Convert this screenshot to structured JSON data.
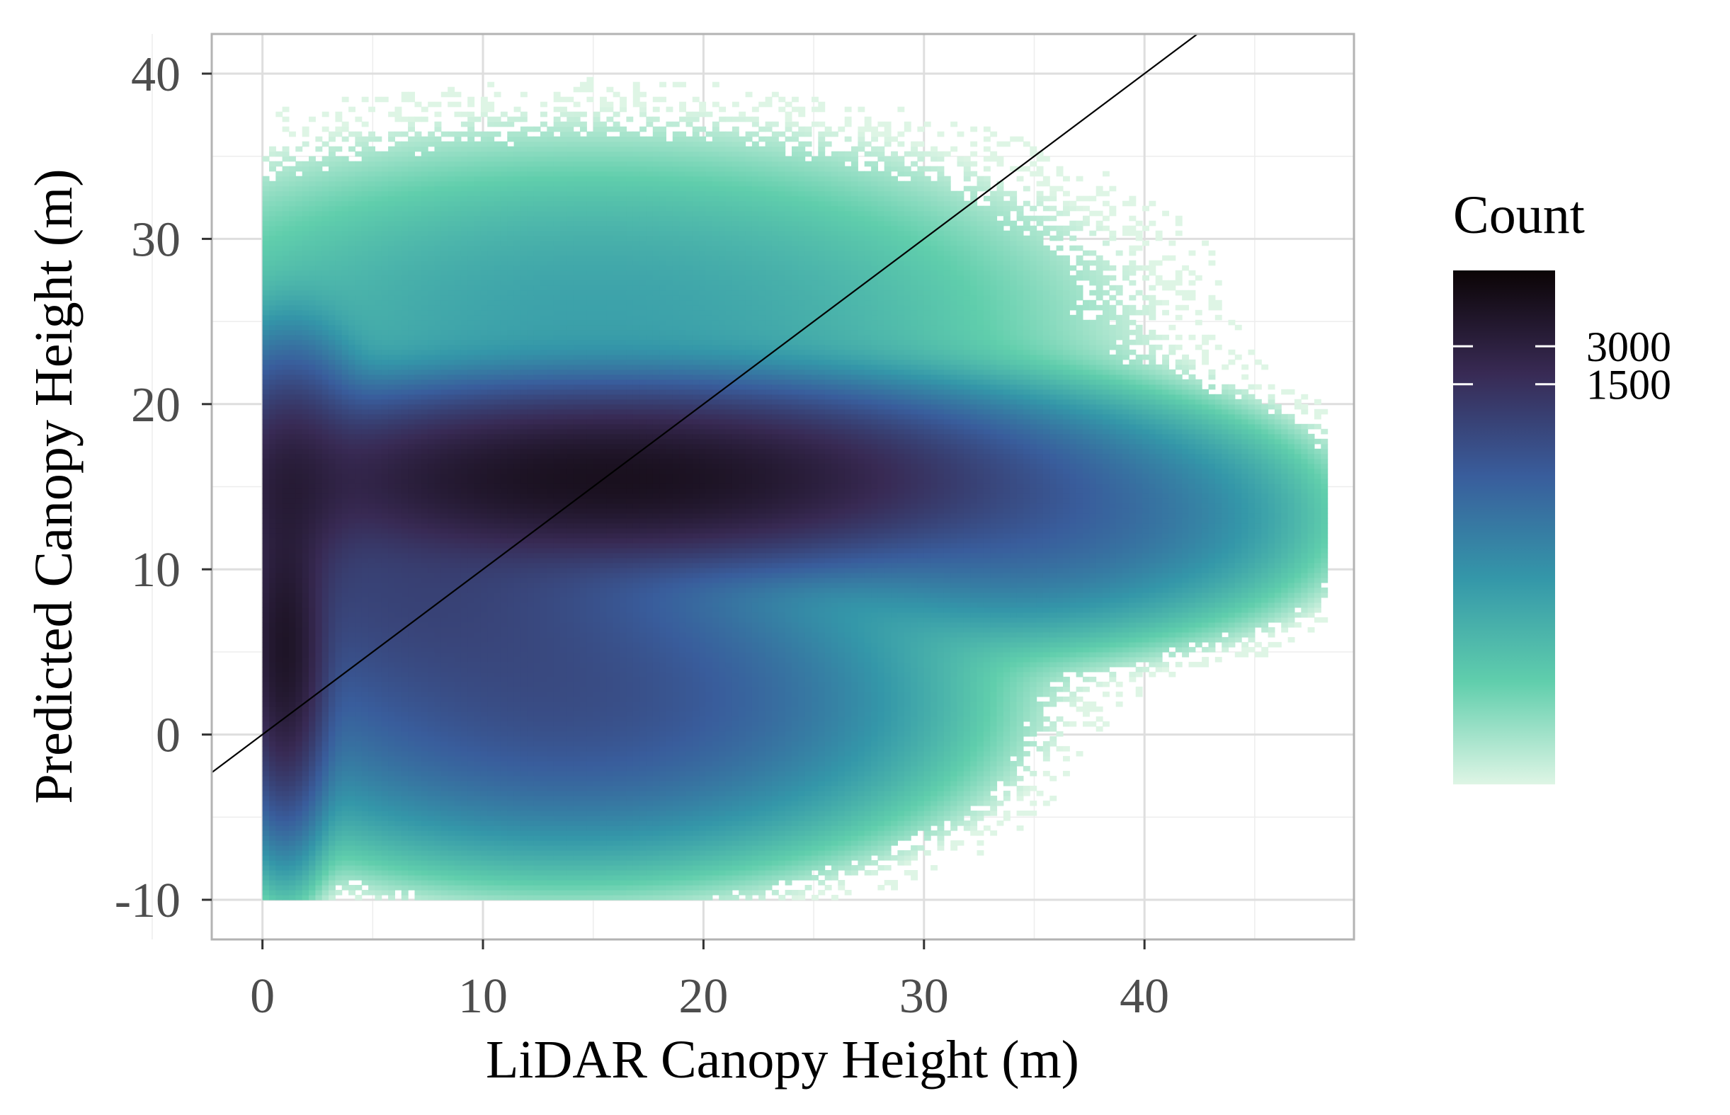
{
  "chart_data": {
    "type": "heatmap",
    "subtype": "2d-bin-density",
    "xlabel": "LiDAR Canopy Height (m)",
    "ylabel": "Predicted Canopy Height (m)",
    "xlim": [
      -2.3,
      49.5
    ],
    "ylim": [
      -12.4,
      42.4
    ],
    "x_ticks": [
      0,
      10,
      20,
      30,
      40
    ],
    "y_ticks": [
      -10,
      0,
      10,
      20,
      30,
      40
    ],
    "x_tick_labels": [
      "0",
      "10",
      "20",
      "30",
      "40"
    ],
    "y_tick_labels": [
      "-10",
      "0",
      "10",
      "20",
      "30",
      "40"
    ],
    "grid": true,
    "reference_line": {
      "type": "identity",
      "slope": 1,
      "intercept": 0,
      "color": "#000000"
    },
    "colorbar": {
      "title": "Count",
      "placement": "right",
      "scale": "log",
      "breaks": [
        1500,
        3000
      ],
      "break_labels": [
        "1500",
        "3000"
      ],
      "range": [
        1,
        12000
      ],
      "colors": [
        "#def5e5",
        "#60ceac",
        "#3497a9",
        "#395d9c",
        "#382a54",
        "#0b0405"
      ]
    },
    "density_clusters": [
      {
        "x_center": 16,
        "y_center": 15.5,
        "sd_x": 7.5,
        "sd_y": 2.3,
        "peak_count": 6500
      },
      {
        "x_center": 1,
        "y_center": 5,
        "sd_x": 0.9,
        "sd_y": 4.2,
        "peak_count": 5000
      },
      {
        "x_center": 1.2,
        "y_center": 15,
        "sd_x": 1.5,
        "sd_y": 3.5,
        "peak_count": 2500
      },
      {
        "x_center": 14,
        "y_center": 2,
        "sd_x": 6.5,
        "sd_y": 3.8,
        "peak_count": 450
      },
      {
        "x_center": 7,
        "y_center": 9,
        "sd_x": 6,
        "sd_y": 4,
        "peak_count": 700
      },
      {
        "x_center": 34,
        "y_center": 13,
        "sd_x": 5,
        "sd_y": 3,
        "peak_count": 220
      },
      {
        "x_center": 41,
        "y_center": 13,
        "sd_x": 3.5,
        "sd_y": 2.5,
        "peak_count": 25
      },
      {
        "x_center": 15,
        "y_center": 25,
        "sd_x": 10,
        "sd_y": 5,
        "peak_count": 30
      }
    ]
  }
}
